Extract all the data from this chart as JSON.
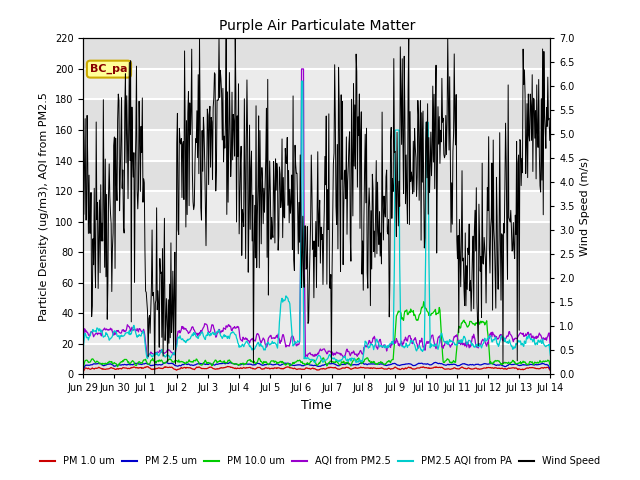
{
  "title": "Purple Air Particulate Matter",
  "xlabel": "Time",
  "ylabel_left": "Particle Density (ug/m3), AQI from PM2.5",
  "ylabel_right": "Wind Speed (m/s)",
  "ylim_left": [
    0,
    220
  ],
  "ylim_right": [
    0.0,
    7.0
  ],
  "yticks_right": [
    0.0,
    0.5,
    1.0,
    1.5,
    2.0,
    2.5,
    3.0,
    3.5,
    4.0,
    4.5,
    5.0,
    5.5,
    6.0,
    6.5,
    7.0
  ],
  "yticks_left": [
    0,
    20,
    40,
    60,
    80,
    100,
    120,
    140,
    160,
    180,
    200,
    220
  ],
  "annotation_text": "BC_pa",
  "colors": {
    "PM1": "#cc0000",
    "PM25": "#0000cc",
    "PM10": "#00cc00",
    "AQI": "#9900cc",
    "PM25_PA": "#00cccc",
    "wind": "#000000"
  },
  "legend_labels": [
    "PM 1.0 um",
    "PM 2.5 um",
    "PM 10.0 um",
    "AQI from PM2.5",
    "PM2.5 AQI from PA",
    "Wind Speed"
  ],
  "legend_colors": [
    "#cc0000",
    "#0000cc",
    "#00cc00",
    "#9900cc",
    "#00cccc",
    "#000000"
  ],
  "x_tick_labels": [
    "Jun 29",
    "Jun 30",
    "Jul 1",
    "Jul 2",
    "Jul 3",
    "Jul 4",
    "Jul 5",
    "Jul 6",
    "Jul 7",
    "Jul 8",
    "Jul 9",
    "Jul 10",
    "Jul 11",
    "Jul 12",
    "Jul 13",
    "Jul 14"
  ],
  "plot_bg_color": "#f0f0f0",
  "fig_bg_color": "#ffffff",
  "grid_color": "#d8d8d8",
  "n_points": 720
}
